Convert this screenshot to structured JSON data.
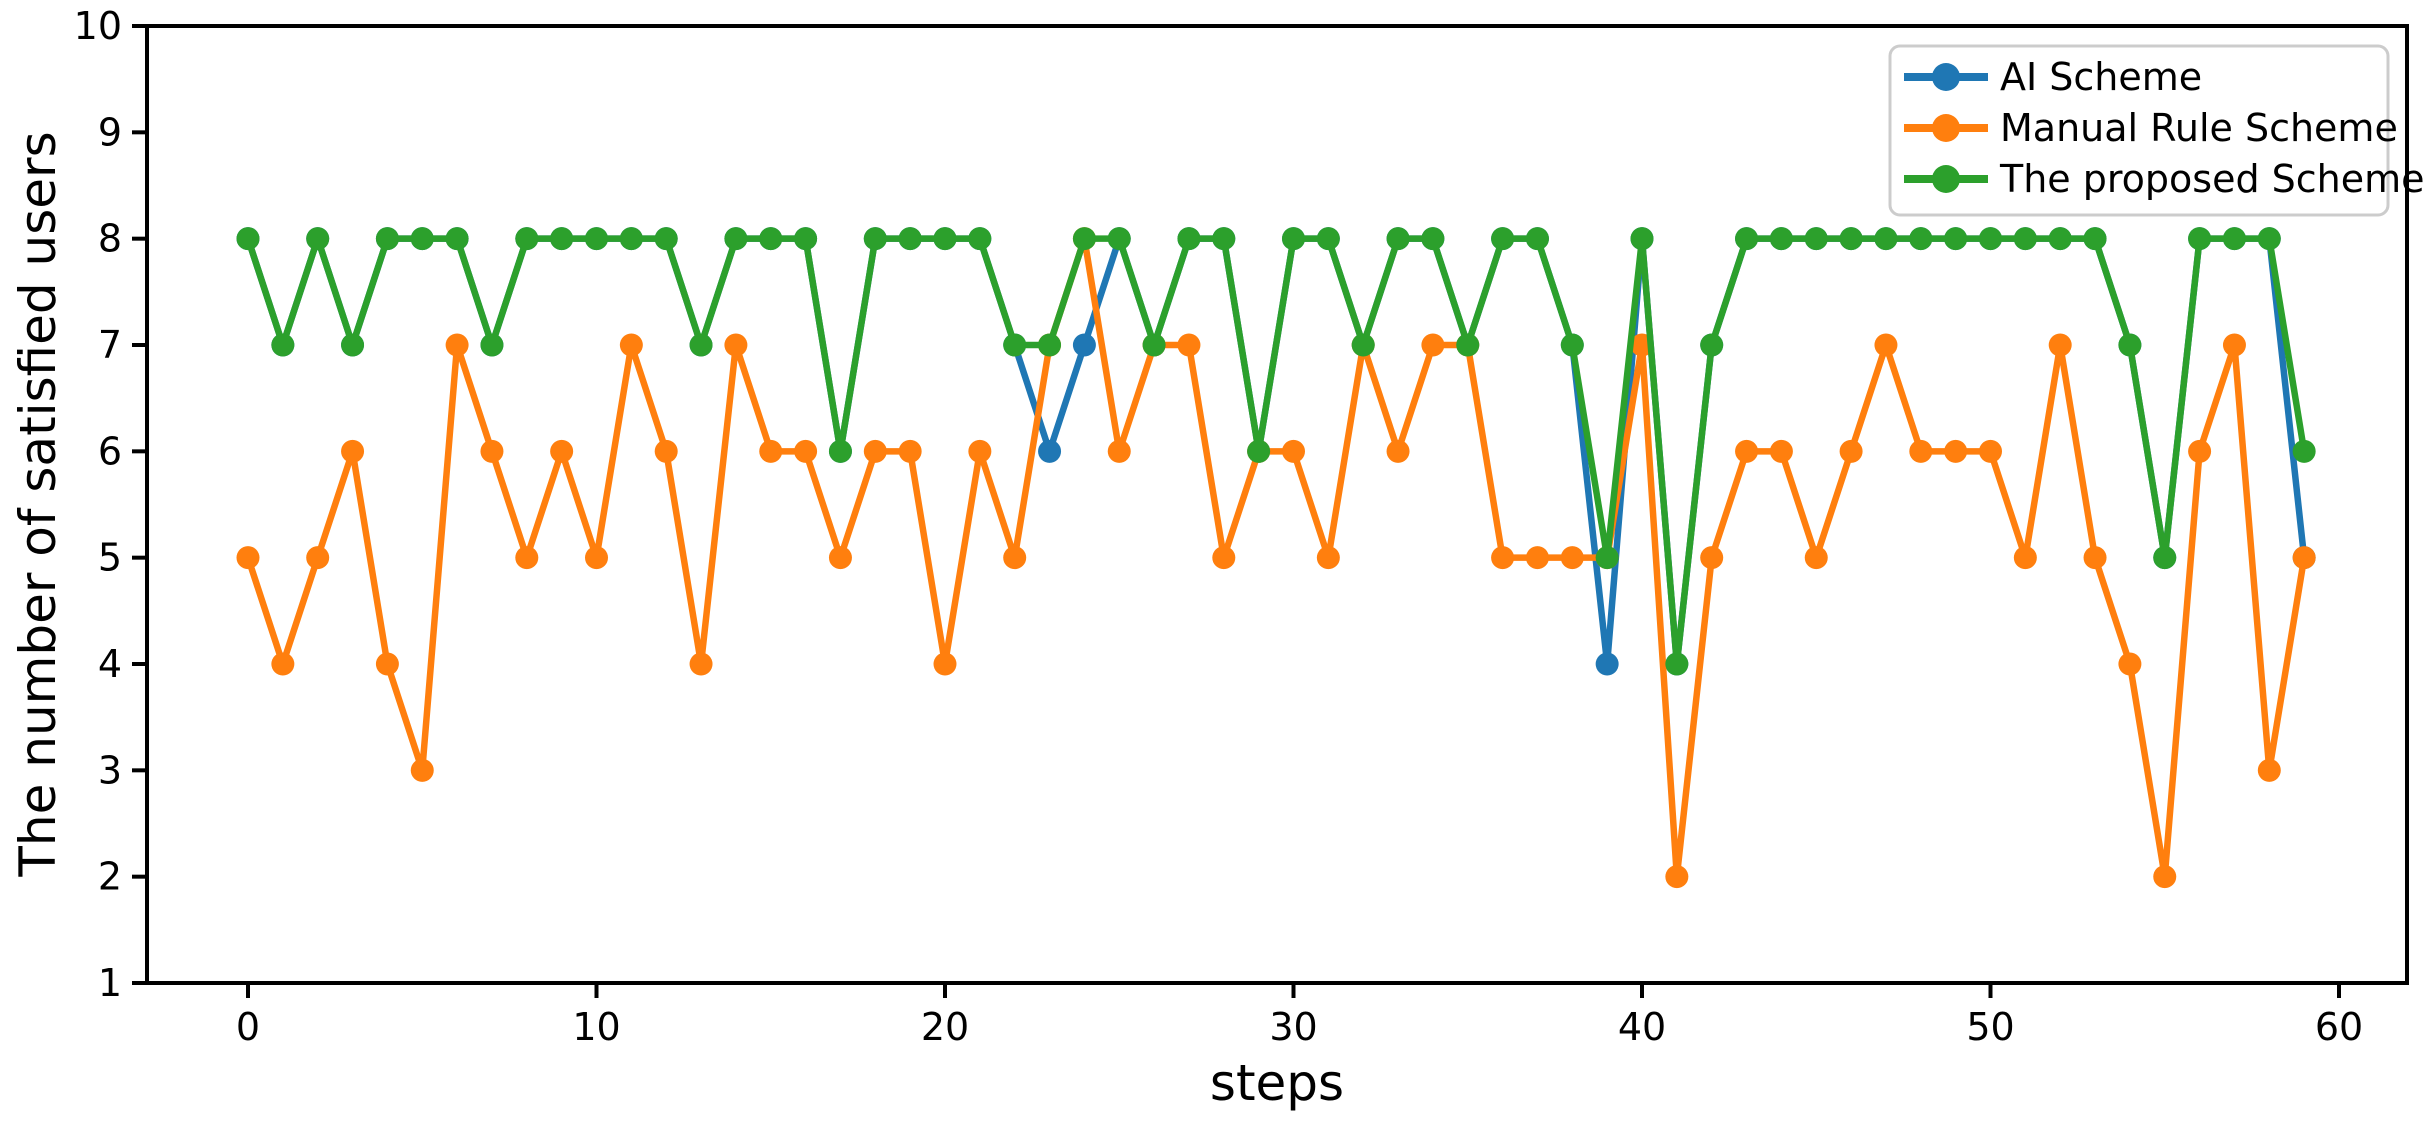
{
  "figure": {
    "background": "#ffffff",
    "axis_color": "#000000",
    "legend_border_color": "#cccccc"
  },
  "legend": {
    "position": "upper right",
    "entries": [
      {
        "label": "AI Scheme",
        "color": "#1f77b4"
      },
      {
        "label": "Manual Rule Scheme",
        "color": "#ff7f0e"
      },
      {
        "label": "The proposed Scheme",
        "color": "#2ca02c"
      }
    ]
  },
  "chart_data": {
    "type": "line",
    "title": "",
    "xlabel": "steps",
    "ylabel": "The number of satisfied users",
    "xlim": [
      -3,
      62
    ],
    "ylim": [
      1,
      10
    ],
    "grid": false,
    "marker": "o",
    "legend_position": "upper right",
    "x_ticks": [
      0,
      10,
      20,
      30,
      40,
      50,
      60
    ],
    "y_ticks": [
      1,
      2,
      3,
      4,
      5,
      6,
      7,
      8,
      9,
      10
    ],
    "x": [
      0,
      1,
      2,
      3,
      4,
      5,
      6,
      7,
      8,
      9,
      10,
      11,
      12,
      13,
      14,
      15,
      16,
      17,
      18,
      19,
      20,
      21,
      22,
      23,
      24,
      25,
      26,
      27,
      28,
      29,
      30,
      31,
      32,
      33,
      34,
      35,
      36,
      37,
      38,
      39,
      40,
      41,
      42,
      43,
      44,
      45,
      46,
      47,
      48,
      49,
      50,
      51,
      52,
      53,
      54,
      55,
      56,
      57,
      58,
      59
    ],
    "series": [
      {
        "name": "AI Scheme",
        "color": "#1f77b4",
        "values": [
          8,
          7,
          8,
          7,
          8,
          8,
          8,
          7,
          8,
          8,
          8,
          8,
          8,
          7,
          8,
          8,
          8,
          6,
          8,
          8,
          8,
          8,
          7,
          6,
          7,
          8,
          7,
          8,
          8,
          6,
          8,
          8,
          7,
          8,
          8,
          7,
          8,
          8,
          7,
          4,
          8,
          4,
          7,
          8,
          8,
          8,
          8,
          8,
          8,
          8,
          8,
          8,
          8,
          8,
          7,
          5,
          8,
          8,
          8,
          5
        ]
      },
      {
        "name": "Manual Rule Scheme",
        "color": "#ff7f0e",
        "values": [
          5,
          4,
          5,
          6,
          4,
          3,
          7,
          6,
          5,
          6,
          5,
          7,
          6,
          4,
          7,
          6,
          6,
          5,
          6,
          6,
          4,
          6,
          5,
          7,
          8,
          6,
          7,
          7,
          5,
          6,
          6,
          5,
          7,
          6,
          7,
          7,
          5,
          5,
          5,
          5,
          7,
          2,
          5,
          6,
          6,
          5,
          6,
          7,
          6,
          6,
          6,
          5,
          7,
          5,
          4,
          2,
          6,
          7,
          3,
          5
        ]
      },
      {
        "name": "The proposed Scheme",
        "color": "#2ca02c",
        "values": [
          8,
          7,
          8,
          7,
          8,
          8,
          8,
          7,
          8,
          8,
          8,
          8,
          8,
          7,
          8,
          8,
          8,
          6,
          8,
          8,
          8,
          8,
          7,
          7,
          8,
          8,
          7,
          8,
          8,
          6,
          8,
          8,
          7,
          8,
          8,
          7,
          8,
          8,
          7,
          5,
          8,
          4,
          7,
          8,
          8,
          8,
          8,
          8,
          8,
          8,
          8,
          8,
          8,
          8,
          7,
          5,
          8,
          8,
          8,
          6
        ]
      }
    ]
  }
}
